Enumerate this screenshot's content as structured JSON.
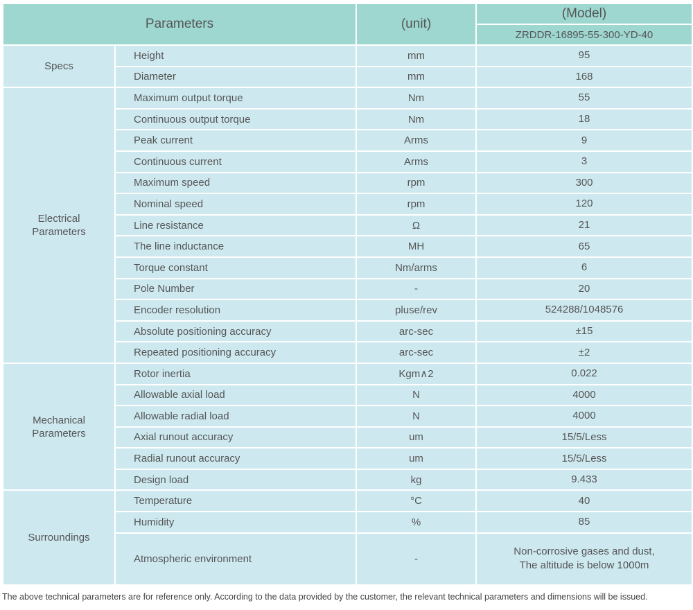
{
  "header": {
    "parameters": "Parameters",
    "unit": "(unit)",
    "model_label": "(Model)",
    "model": "ZRDDR-16895-55-300-YD-40"
  },
  "groups": [
    {
      "name": "Specs",
      "rows": [
        {
          "param": "Height",
          "unit": "mm",
          "value": "95"
        },
        {
          "param": "Diameter",
          "unit": "mm",
          "value": "168"
        }
      ]
    },
    {
      "name": "Electrical Parameters",
      "rows": [
        {
          "param": "Maximum output torque",
          "unit": "Nm",
          "value": "55"
        },
        {
          "param": "Continuous output torque",
          "unit": "Nm",
          "value": "18"
        },
        {
          "param": "Peak current",
          "unit": "Arms",
          "value": "9"
        },
        {
          "param": "Continuous current",
          "unit": "Arms",
          "value": "3"
        },
        {
          "param": "Maximum speed",
          "unit": "rpm",
          "value": "300"
        },
        {
          "param": "Nominal speed",
          "unit": "rpm",
          "value": "120"
        },
        {
          "param": "Line resistance",
          "unit": "Ω",
          "value": "21"
        },
        {
          "param": "The line inductance",
          "unit": "MH",
          "value": "65"
        },
        {
          "param": "Torque constant",
          "unit": "Nm/arms",
          "value": "6"
        },
        {
          "param": "Pole Number",
          "unit": "-",
          "value": "20"
        },
        {
          "param": "Encoder resolution",
          "unit": "pluse/rev",
          "value": "524288/1048576"
        },
        {
          "param": "Absolute positioning accuracy",
          "unit": "arc-sec",
          "value": "±15"
        },
        {
          "param": "Repeated positioning accuracy",
          "unit": "arc-sec",
          "value": "±2"
        }
      ]
    },
    {
      "name": "Mechanical Parameters",
      "rows": [
        {
          "param": "Rotor inertia",
          "unit": "Kgm∧2",
          "value": "0.022"
        },
        {
          "param": "Allowable axial load",
          "unit": "N",
          "value": "4000"
        },
        {
          "param": "Allowable radial load",
          "unit": "N",
          "value": "4000"
        },
        {
          "param": "Axial runout accuracy",
          "unit": "um",
          "value": "15/5/Less"
        },
        {
          "param": "Radial runout accuracy",
          "unit": "um",
          "value": "15/5/Less"
        },
        {
          "param": "Design load",
          "unit": "kg",
          "value": "9.433"
        }
      ]
    },
    {
      "name": "Surroundings",
      "rows": [
        {
          "param": "Temperature",
          "unit": "°C",
          "value": "40"
        },
        {
          "param": "Humidity",
          "unit": "%",
          "value": "85"
        },
        {
          "param": "Atmospheric environment",
          "unit": "-",
          "value": "Non-corrosive gases and dust,\nThe altitude is below 1000m"
        }
      ]
    }
  ],
  "footnote": "The above technical parameters are for reference only. According to the data provided by the customer, the relevant technical parameters and dimensions will be issued."
}
